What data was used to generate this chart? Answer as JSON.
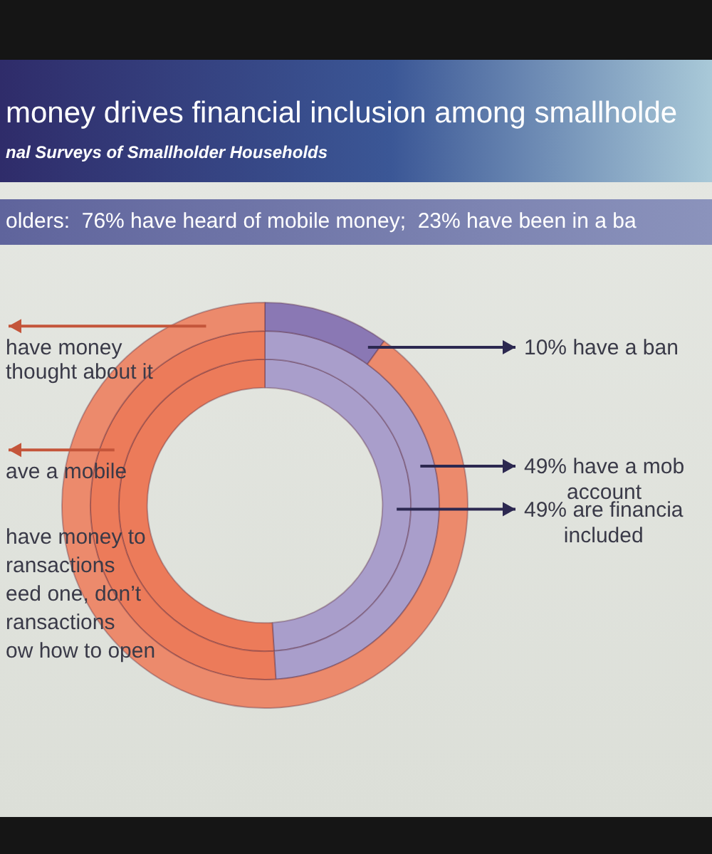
{
  "chart_data": {
    "type": "donut",
    "title": "money drives financial inclusion among smallholde",
    "subtitle": "nal Surveys of Smallholder Households",
    "annotations": [
      "olders:  76% have heard of mobile money;  23% have been in a ba",
      "have money to\nransactions\need one, don’t\nransactions\now how to open"
    ],
    "categories": [
      null,
      null
    ],
    "series": [
      {
        "values": [
          10,
          90
        ],
        "colors": [
          "#8a78b4",
          "#ec8a6c"
        ],
        "value_labels": [
          "10% have a ban",
          "have money\nthought about it"
        ]
      },
      {
        "values": [
          49,
          51
        ],
        "colors": [
          "#a99ecb",
          "#ec7b5a"
        ],
        "value_labels": [
          "49% have a mob\naccount",
          "ave a mobile"
        ]
      },
      {
        "values": [
          49,
          51
        ],
        "colors": [
          "#a99ecb",
          "#ec7b5a"
        ],
        "value_labels": [
          "49% are financia\nincluded",
          null
        ]
      }
    ]
  }
}
